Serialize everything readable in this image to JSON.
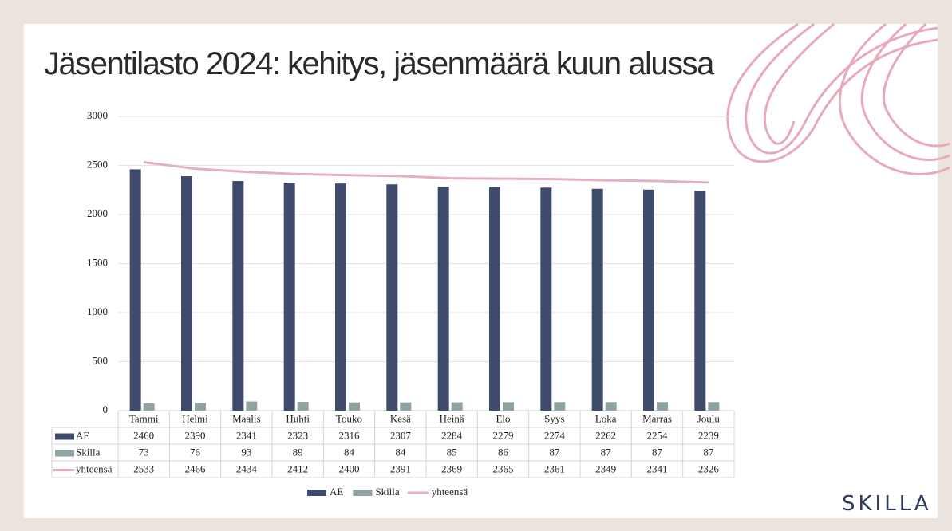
{
  "chart_data": {
    "type": "bar",
    "title": "Jäsentilasto 2024: kehitys, jäsenmäärä kuun alussa",
    "categories": [
      "Tammi",
      "Helmi",
      "Maalis",
      "Huhti",
      "Touko",
      "Kesä",
      "Heinä",
      "Elo",
      "Syys",
      "Loka",
      "Marras",
      "Joulu"
    ],
    "series": [
      {
        "name": "AE",
        "type": "bar",
        "color": "#3f4b6c",
        "values": [
          2460,
          2390,
          2341,
          2323,
          2316,
          2307,
          2284,
          2279,
          2274,
          2262,
          2254,
          2239
        ]
      },
      {
        "name": "Skilla",
        "type": "bar",
        "color": "#8fa3a2",
        "values": [
          73,
          76,
          93,
          89,
          84,
          84,
          85,
          86,
          87,
          87,
          87,
          87
        ]
      },
      {
        "name": "yhteensä",
        "type": "line",
        "color": "#e7aec2",
        "values": [
          2533,
          2466,
          2434,
          2412,
          2400,
          2391,
          2369,
          2365,
          2361,
          2349,
          2341,
          2326
        ]
      }
    ],
    "ylim": [
      0,
      3000
    ],
    "yticks": [
      0,
      500,
      1000,
      1500,
      2000,
      2500,
      3000
    ],
    "grid": true,
    "legend": "bottom"
  },
  "logo": "SKILLA"
}
